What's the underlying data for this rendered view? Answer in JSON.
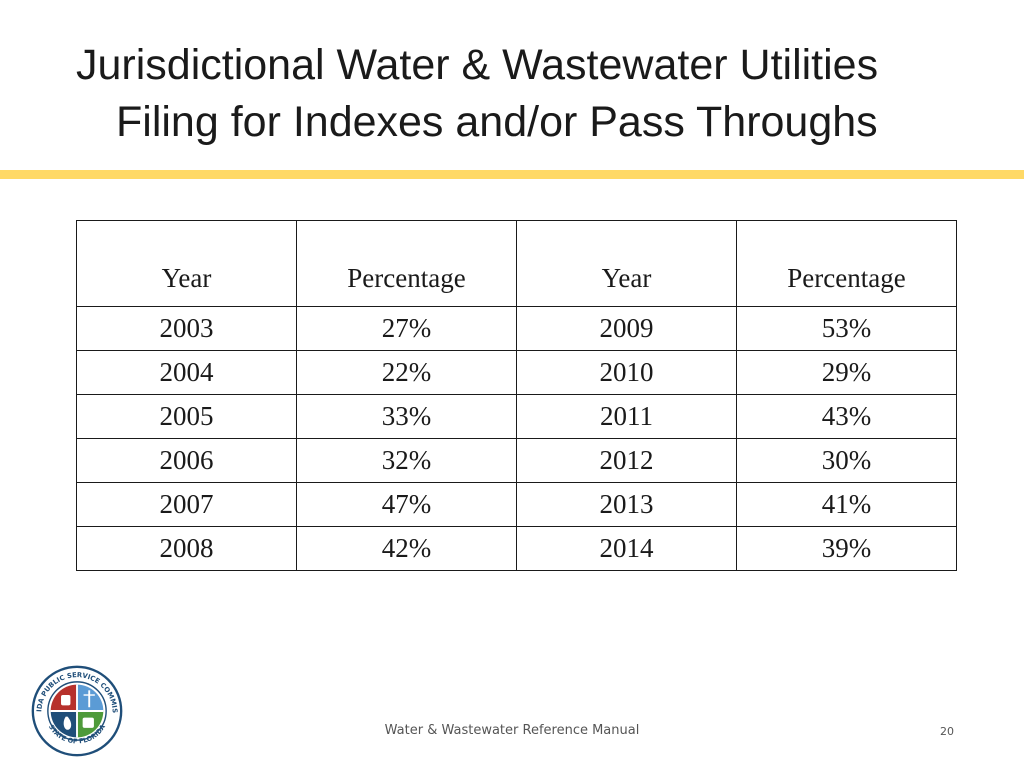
{
  "slide": {
    "title_line1": "Jurisdictional Water & Wastewater Utilities",
    "title_line2": "Filing for Indexes and/or Pass Throughs",
    "accent_color": "#ffd966"
  },
  "table": {
    "headers": [
      "Year",
      "Percentage",
      "Year",
      "Percentage"
    ],
    "rows": [
      [
        "2003",
        "27%",
        "2009",
        "53%"
      ],
      [
        "2004",
        "22%",
        "2010",
        "29%"
      ],
      [
        "2005",
        "33%",
        "2011",
        "43%"
      ],
      [
        "2006",
        "32%",
        "2012",
        "30%"
      ],
      [
        "2007",
        "47%",
        "2013",
        "41%"
      ],
      [
        "2008",
        "42%",
        "2014",
        "39%"
      ]
    ]
  },
  "logo": {
    "icon": "florida-psc-seal-icon",
    "seal_text_top": "FLORIDA PUBLIC SERVICE COMMISSION",
    "seal_text_bottom": "STATE OF FLORIDA"
  },
  "footer": {
    "text": "Water & Wastewater Reference Manual",
    "page_number": "20"
  }
}
